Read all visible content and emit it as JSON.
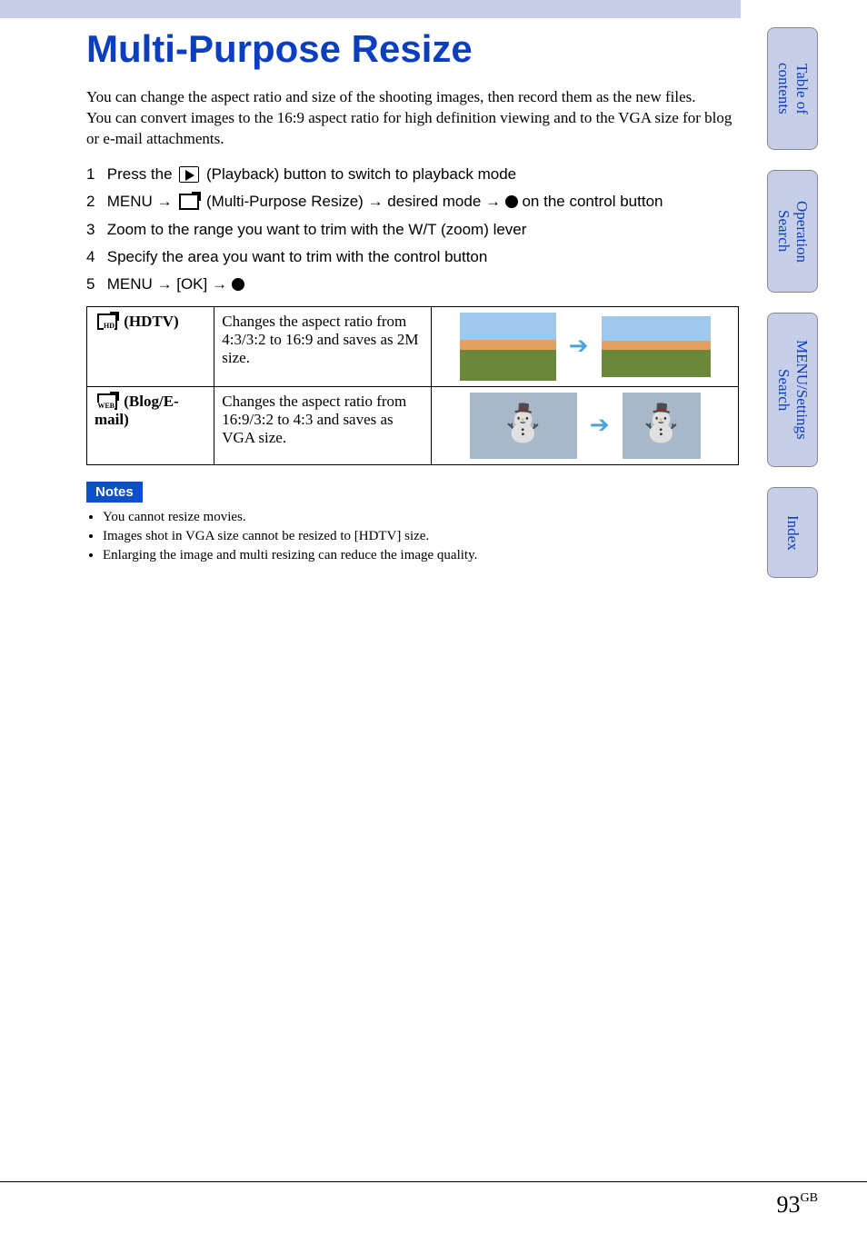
{
  "title": "Multi-Purpose Resize",
  "intro": "You can change the aspect ratio and size of the shooting images, then record them as the new files.\nYou can convert images to the 16:9 aspect ratio for high definition viewing and to the VGA size for blog or e-mail attachments.",
  "steps": [
    {
      "num": "1",
      "before": "Press the ",
      "after": " (Playback) button to switch to playback mode",
      "icon": "play"
    },
    {
      "num": "2",
      "before": "MENU → ",
      "mid": " (Multi-Purpose Resize) → desired mode → ",
      "after": " on the control button",
      "icon": "resize",
      "trailing_icon": "dot"
    },
    {
      "num": "3",
      "text": "Zoom to the range you want to trim with the W/T (zoom) lever"
    },
    {
      "num": "4",
      "text": "Specify the area you want to trim with the control button"
    },
    {
      "num": "5",
      "before": "MENU → [OK] → ",
      "trailing_icon": "dot"
    }
  ],
  "modes": [
    {
      "label": "(HDTV)",
      "icon_sub": "HD",
      "desc": "Changes the aspect ratio from 4:3/3:2 to 16:9 and saves as 2M size.",
      "thumb_before_class": "landscape hdtv-before",
      "thumb_after_class": "landscape hdtv-after"
    },
    {
      "label": "(Blog/E-mail)",
      "icon_sub": "WEB",
      "desc": "Changes the aspect ratio from 16:9/3:2 to 4:3 and saves as VGA size.",
      "thumb_before_class": "snowman blog-before",
      "thumb_after_class": "snowman blog-after"
    }
  ],
  "notes_label": "Notes",
  "notes": [
    "You cannot resize movies.",
    "Images shot in VGA size cannot be resized to [HDTV] size.",
    "Enlarging the image and multi resizing can reduce the image quality."
  ],
  "tabs": [
    {
      "label": "Table of\ncontents",
      "size": ""
    },
    {
      "label": "Operation\nSearch",
      "size": ""
    },
    {
      "label": "MENU/Settings\nSearch",
      "size": "tall"
    },
    {
      "label": "Index",
      "size": "short"
    }
  ],
  "page_number": "93",
  "page_suffix": "GB",
  "colors": {
    "accent_blue": "#0b3fbf",
    "tab_bg": "#c7cfe8",
    "notes_bg": "#0b4fc9",
    "arrow_color": "#4aa3d8"
  }
}
